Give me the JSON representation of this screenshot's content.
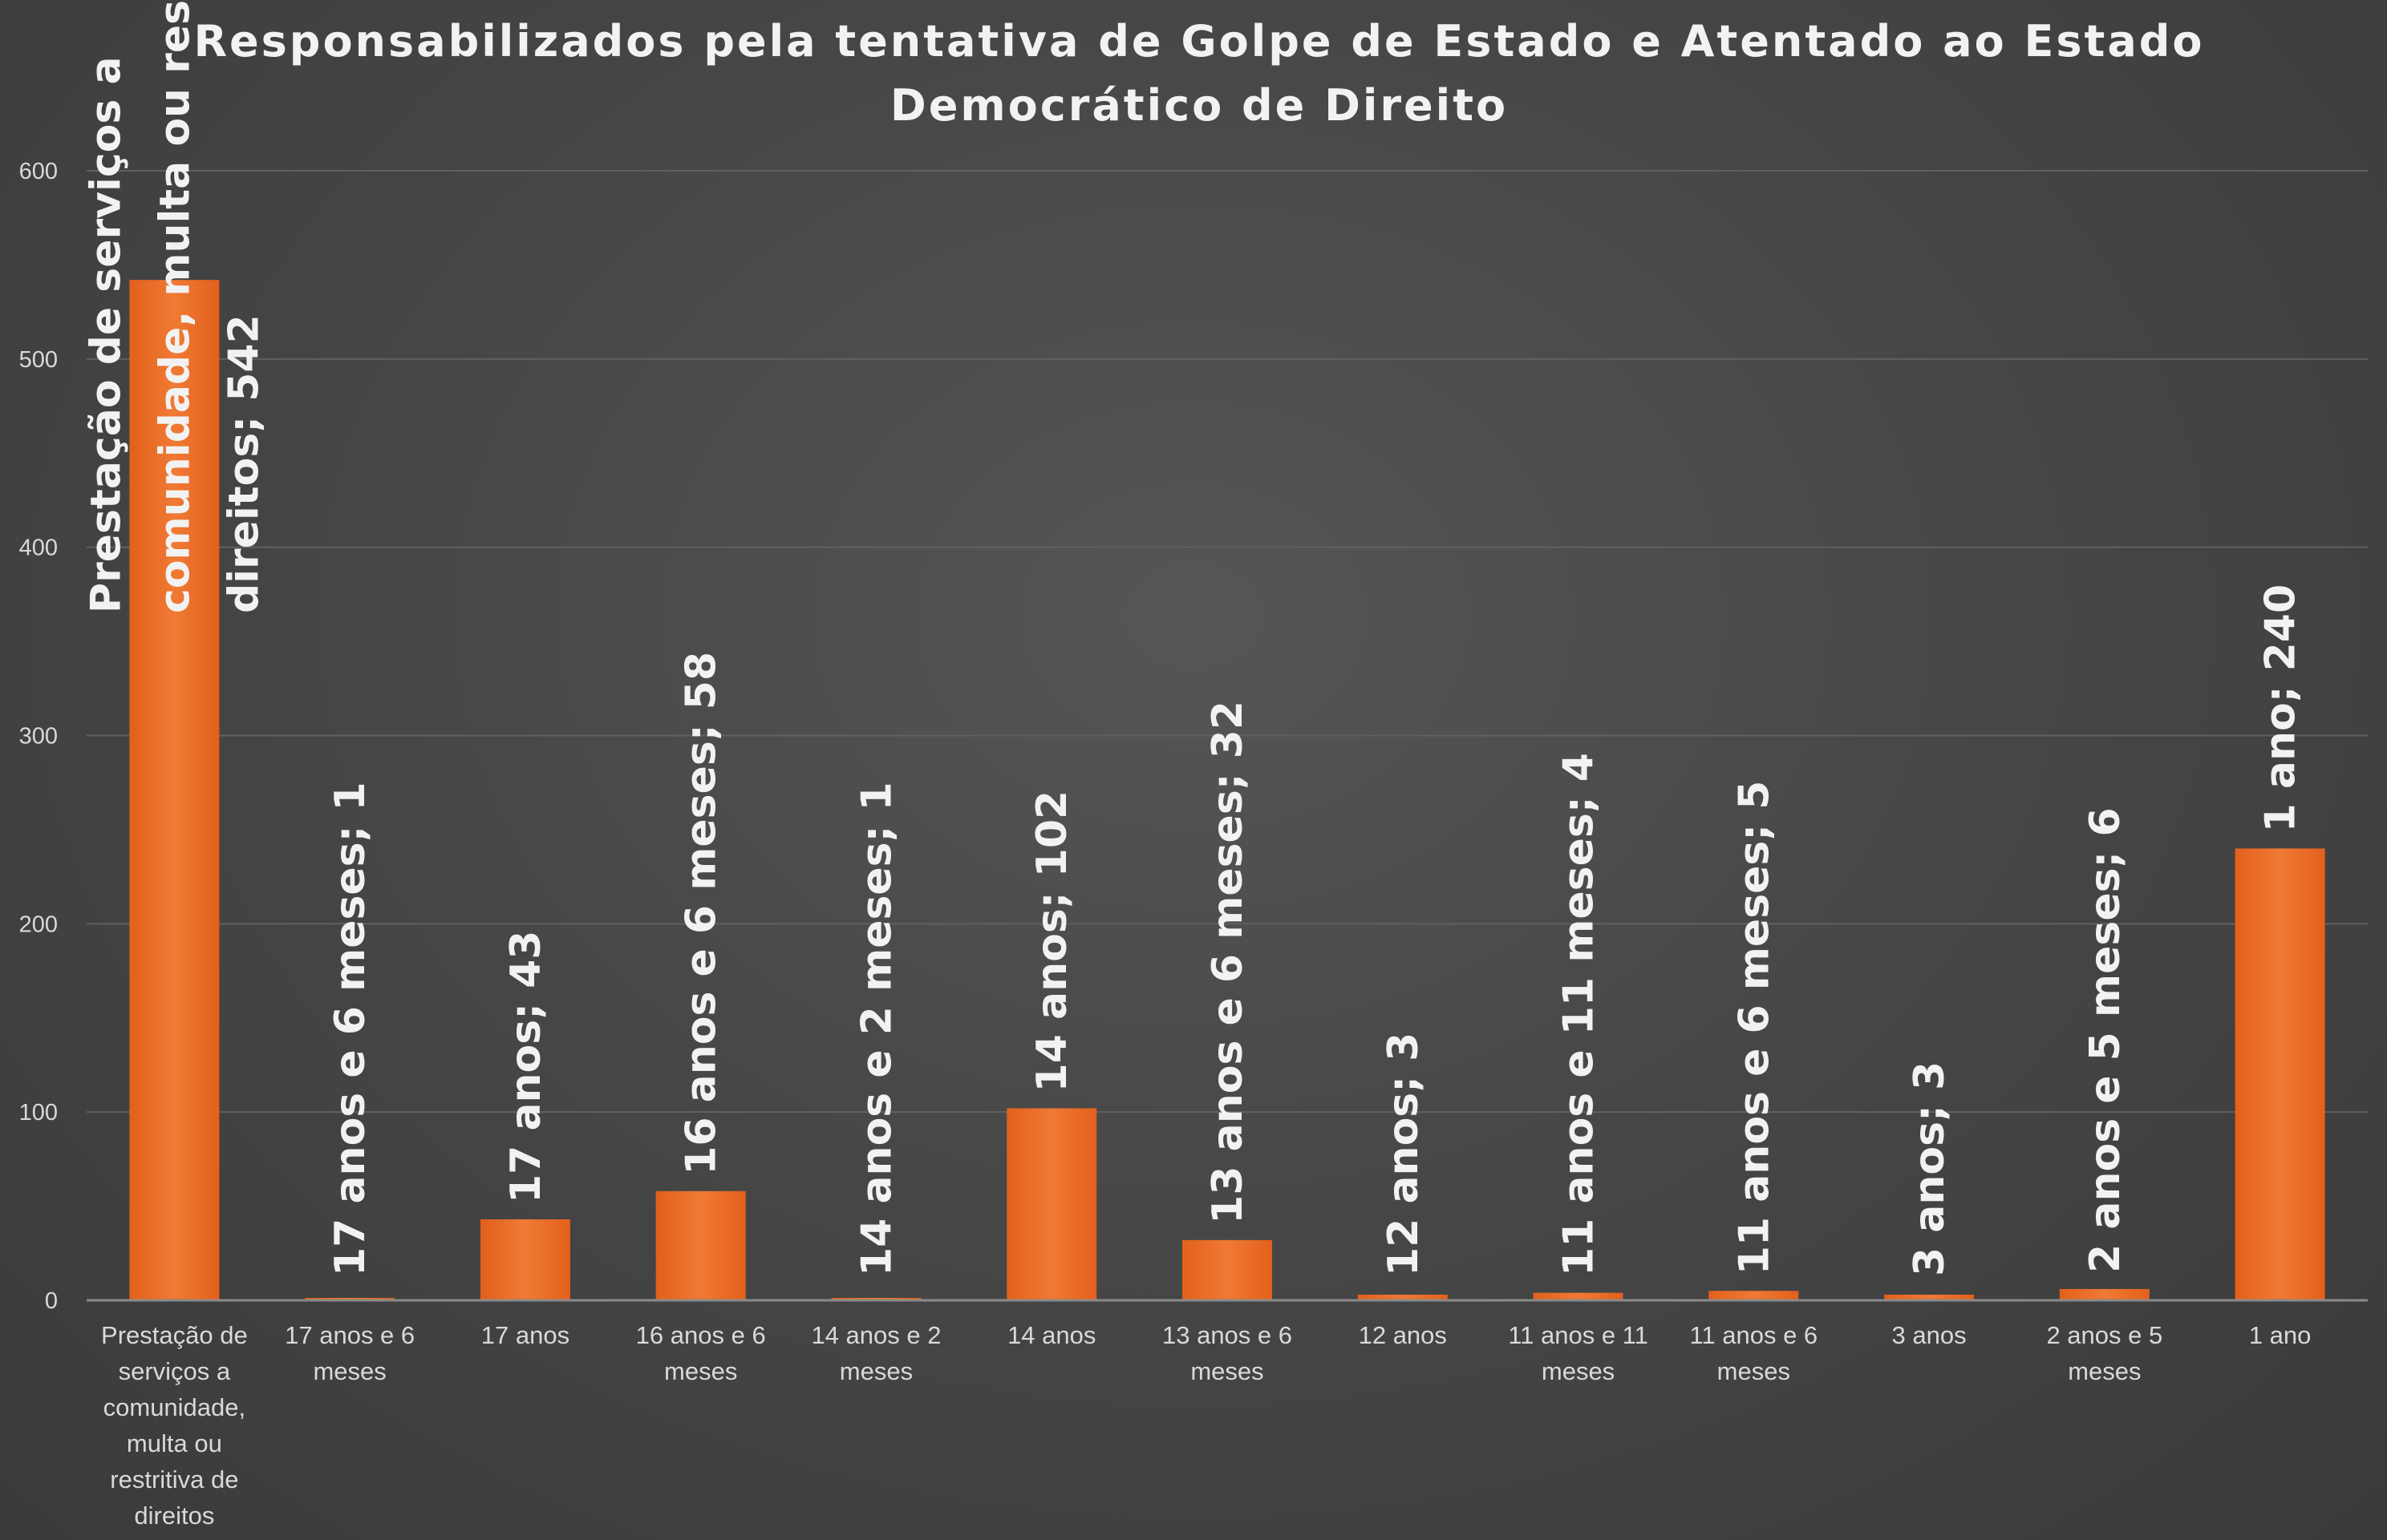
{
  "chart_data": {
    "type": "bar",
    "title": "Responsabilizados pela tentativa de Golpe de Estado e Atentado ao Estado Democrático de Direito",
    "title_lines": [
      "Responsabilizados pela tentativa de Golpe de Estado e Atentado ao Estado",
      "Democrático de Direito"
    ],
    "categories": [
      "Prestação de serviços a comunidade, multa ou restritiva de direitos",
      "17 anos e 6 meses",
      "17 anos",
      "16 anos e 6 meses",
      "14 anos e 2 meses",
      "14 anos",
      "13 anos e 6 meses",
      "12 anos",
      "11 anos e 11 meses",
      "11 anos e 6 meses",
      "3 anos",
      "2 anos e 5 meses",
      "1 ano"
    ],
    "category_label_lines": [
      [
        "Prestação de",
        "serviços a",
        "comunidade,",
        "multa ou",
        "restritiva de",
        "direitos"
      ],
      [
        "17 anos e 6",
        "meses"
      ],
      [
        "17 anos"
      ],
      [
        "16 anos e 6",
        "meses"
      ],
      [
        "14 anos e 2",
        "meses"
      ],
      [
        "14 anos"
      ],
      [
        "13 anos e 6",
        "meses"
      ],
      [
        "12 anos"
      ],
      [
        "11 anos e 11",
        "meses"
      ],
      [
        "11 anos e 6",
        "meses"
      ],
      [
        "3 anos"
      ],
      [
        "2 anos e 5",
        "meses"
      ],
      [
        "1 ano"
      ]
    ],
    "values": [
      542,
      1,
      43,
      58,
      1,
      102,
      32,
      3,
      4,
      5,
      3,
      6,
      240
    ],
    "data_labels": [
      [
        "Prestação de serviços a",
        "comunidade, multa ou restritiva de",
        "direitos; 542"
      ],
      [
        "17 anos e 6 meses; 1"
      ],
      [
        "17 anos; 43"
      ],
      [
        "16 anos e 6 meses; 58"
      ],
      [
        "14 anos e 2 meses; 1"
      ],
      [
        "14 anos; 102"
      ],
      [
        "13 anos e 6 meses; 32"
      ],
      [
        "12 anos; 3"
      ],
      [
        "11 anos e 11 meses; 4"
      ],
      [
        "11 anos e 6 meses; 5"
      ],
      [
        "3 anos; 3"
      ],
      [
        "2 anos e 5 meses; 6"
      ],
      [
        "1 ano; 240"
      ]
    ],
    "yticks": [
      "0",
      "100",
      "200",
      "300",
      "400",
      "500",
      "600"
    ],
    "ylim": [
      0,
      600
    ],
    "xlabel": "",
    "ylabel": "",
    "grid": true,
    "legend": "none",
    "bar_color": "#ED6A26",
    "background_color": "#4a4a4a",
    "text_color": "#f2f2f2"
  }
}
